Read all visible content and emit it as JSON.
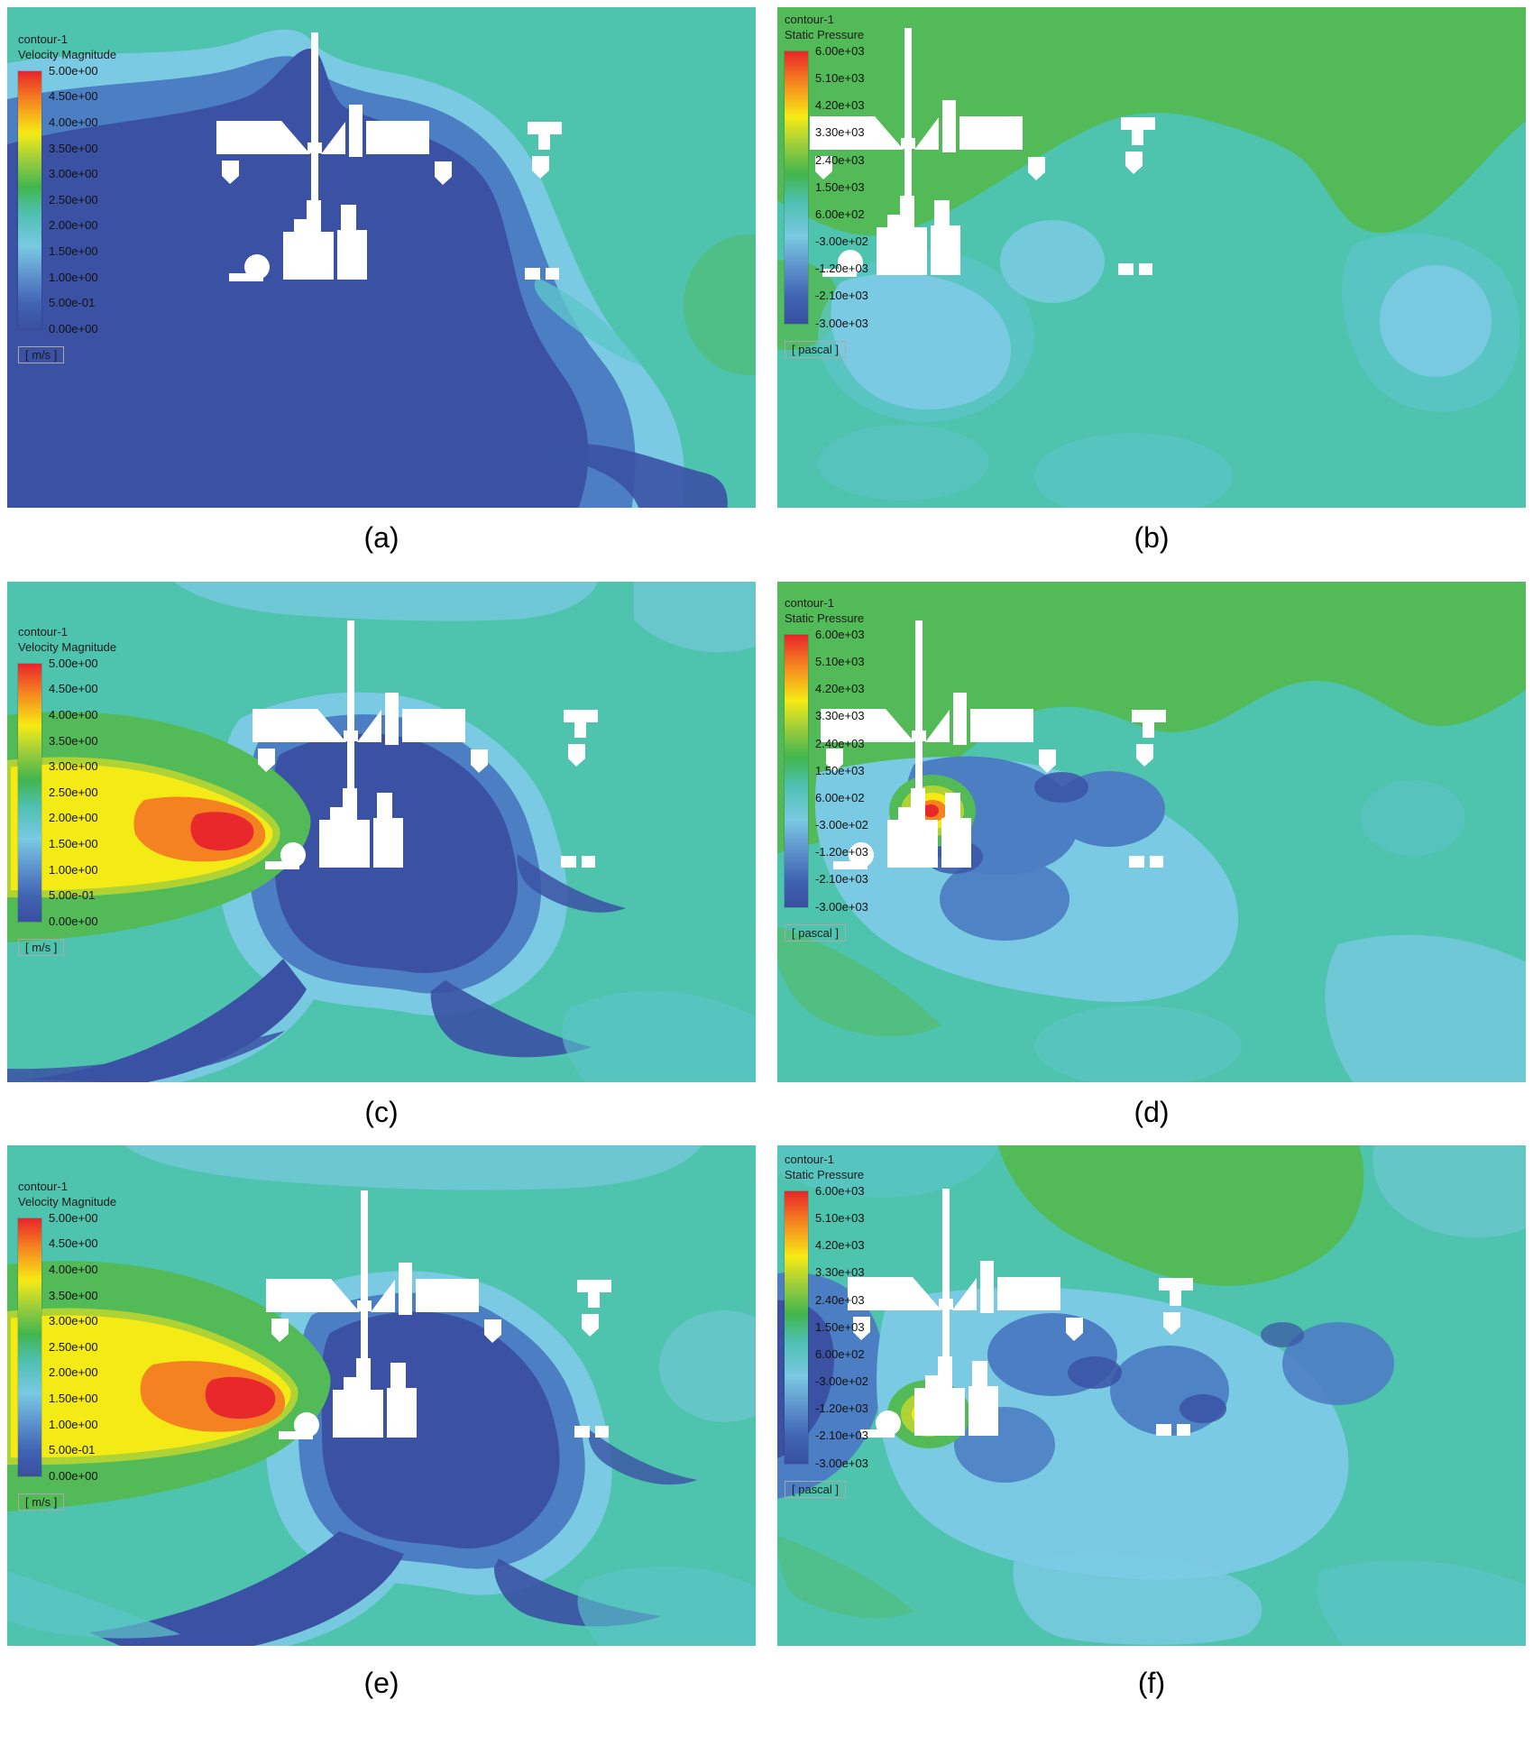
{
  "figure": {
    "rows": 3,
    "cols": 2,
    "content": "CFD contour plots of flow around a boom-sprayer machine cross-section"
  },
  "legend": {
    "velocity": {
      "line1": "contour-1",
      "line2": "Velocity Magnitude",
      "unit": "[ m/s ]",
      "ticks": [
        "5.00e+00",
        "4.50e+00",
        "4.00e+00",
        "3.50e+00",
        "3.00e+00",
        "2.50e+00",
        "2.00e+00",
        "1.50e+00",
        "1.00e+00",
        "5.00e-01",
        "0.00e+00"
      ]
    },
    "pressure": {
      "line1": "contour-1",
      "line2": "Static Pressure",
      "unit": "[ pascal ]",
      "ticks": [
        "6.00e+03",
        "5.10e+03",
        "4.20e+03",
        "3.30e+03",
        "2.40e+03",
        "1.50e+03",
        "6.00e+02",
        "-3.00e+02",
        "-1.20e+03",
        "-2.10e+03",
        "-3.00e+03"
      ]
    }
  },
  "panels": {
    "a": {
      "caption": "(a)"
    },
    "b": {
      "caption": "(b)"
    },
    "c": {
      "caption": "(c)"
    },
    "d": {
      "caption": "(d)"
    },
    "e": {
      "caption": "(e)"
    },
    "f": {
      "caption": "(f)"
    }
  },
  "palette": {
    "teal_background": "#4EC3AD",
    "green": "#53BA58",
    "yellow_green": "#AFD335",
    "yellow": "#F4EB16",
    "orange": "#F58220",
    "red": "#E8282B",
    "cyan": "#5EC6CB",
    "light_blue": "#7BCAE3",
    "medium_blue": "#4C7EC3",
    "dark_blue": "#3B52A4",
    "obstacle": "#FFFFFF"
  },
  "chart_data": [
    {
      "panel": "a",
      "type": "heatmap",
      "contour_name": "contour-1",
      "quantity": "Velocity Magnitude",
      "unit": "m/s",
      "legend_min": 0.0,
      "legend_max": 5.0,
      "legend_levels": [
        5.0,
        4.5,
        4.0,
        3.5,
        3.0,
        2.5,
        2.0,
        1.5,
        1.0,
        0.5,
        0.0
      ],
      "legend_labels": [
        "5.00e+00",
        "4.50e+00",
        "4.00e+00",
        "3.50e+00",
        "3.00e+00",
        "2.50e+00",
        "2.00e+00",
        "1.50e+00",
        "1.00e+00",
        "5.00e-01",
        "0.00e+00"
      ],
      "colormap": "rainbow, red = max (top) to dark blue = min (bottom)",
      "description": "No spray jet; large low-velocity (0-0.5 m/s dark blue) wake filling left and bottom of domain around white machine silhouette; ambient ~1-1.5 m/s teal elsewhere."
    },
    {
      "panel": "b",
      "type": "heatmap",
      "contour_name": "contour-1",
      "quantity": "Static Pressure",
      "unit": "pascal",
      "legend_min": -3000,
      "legend_max": 6000,
      "legend_levels": [
        6000,
        5100,
        4200,
        3300,
        2400,
        1500,
        600,
        -300,
        -1200,
        -2100,
        -3000
      ],
      "legend_labels": [
        "6.00e+03",
        "5.10e+03",
        "4.20e+03",
        "3.30e+03",
        "2.40e+03",
        "1.50e+03",
        "6.00e+02",
        "-3.00e+02",
        "-1.20e+03",
        "-2.10e+03",
        "-3.00e+03"
      ],
      "colormap": "rainbow, red = max (top) to dark blue = min (bottom)",
      "description": "Mild field: positive (green ~600-1500 Pa) band across top, near-zero teal background, weak negative light-blue pockets below and right of machine."
    },
    {
      "panel": "c",
      "type": "heatmap",
      "contour_name": "contour-1",
      "quantity": "Velocity Magnitude",
      "unit": "m/s",
      "legend_min": 0.0,
      "legend_max": 5.0,
      "legend_levels": [
        5.0,
        4.5,
        4.0,
        3.5,
        3.0,
        2.5,
        2.0,
        1.5,
        1.0,
        0.5,
        0.0
      ],
      "legend_labels": [
        "5.00e+00",
        "4.50e+00",
        "4.00e+00",
        "3.50e+00",
        "3.00e+00",
        "2.50e+00",
        "2.00e+00",
        "1.50e+00",
        "1.00e+00",
        "5.00e-01",
        "0.00e+00"
      ],
      "colormap": "rainbow, red = max (top) to dark blue = min (bottom)",
      "description": "High-velocity jet from left edge: red core ~5 m/s inside orange/yellow/green envelope reaching the machine; dark-blue recirculation wake around machine body with streaks to bottom corners."
    },
    {
      "panel": "d",
      "type": "heatmap",
      "contour_name": "contour-1",
      "quantity": "Static Pressure",
      "unit": "pascal",
      "legend_min": -3000,
      "legend_max": 6000,
      "legend_levels": [
        6000,
        5100,
        4200,
        3300,
        2400,
        1500,
        600,
        -300,
        -1200,
        -2100,
        -3000
      ],
      "legend_labels": [
        "6.00e+03",
        "5.10e+03",
        "4.20e+03",
        "3.30e+03",
        "2.40e+03",
        "1.50e+03",
        "6.00e+02",
        "-3.00e+02",
        "-1.20e+03",
        "-2.10e+03",
        "-3.00e+03"
      ],
      "colormap": "rainbow, red = max (top) to dark blue = min (bottom)",
      "description": "Localized high-pressure spot (red ~6e3 Pa with orange/yellow/green rings) left of machine; green positive band on top; blue negative pockets around machine underside."
    },
    {
      "panel": "e",
      "type": "heatmap",
      "contour_name": "contour-1",
      "quantity": "Velocity Magnitude",
      "unit": "m/s",
      "legend_min": 0.0,
      "legend_max": 5.0,
      "legend_levels": [
        5.0,
        4.5,
        4.0,
        3.5,
        3.0,
        2.5,
        2.0,
        1.5,
        1.0,
        0.5,
        0.0
      ],
      "legend_labels": [
        "5.00e+00",
        "4.50e+00",
        "4.00e+00",
        "3.50e+00",
        "3.00e+00",
        "2.50e+00",
        "2.00e+00",
        "1.50e+00",
        "1.00e+00",
        "5.00e-01",
        "0.00e+00"
      ],
      "colormap": "rainbow, red = max (top) to dark blue = min (bottom)",
      "description": "Wider jet from left edge with red core ~5 m/s; enlarged dark-blue wake sweeping from machine toward bottom-left; teal ambient with cyan patches on right."
    },
    {
      "panel": "f",
      "type": "heatmap",
      "contour_name": "contour-1",
      "quantity": "Static Pressure",
      "unit": "pascal",
      "legend_min": -3000,
      "legend_max": 6000,
      "legend_levels": [
        6000,
        5100,
        4200,
        3300,
        2400,
        1500,
        600,
        -300,
        -1200,
        -2100,
        -3000
      ],
      "legend_labels": [
        "6.00e+03",
        "5.10e+03",
        "4.20e+03",
        "3.30e+03",
        "2.40e+03",
        "1.50e+03",
        "6.00e+02",
        "-3.00e+02",
        "-1.20e+03",
        "-2.10e+03",
        "-3.00e+03"
      ],
      "colormap": "rainbow, red = max (top) to dark blue = min (bottom)",
      "description": "Yellow high-pressure spot with green ring left of machine; stronger negative (medium/dark blue) regions along left edge and around machine; green positive lobe above mast."
    }
  ]
}
